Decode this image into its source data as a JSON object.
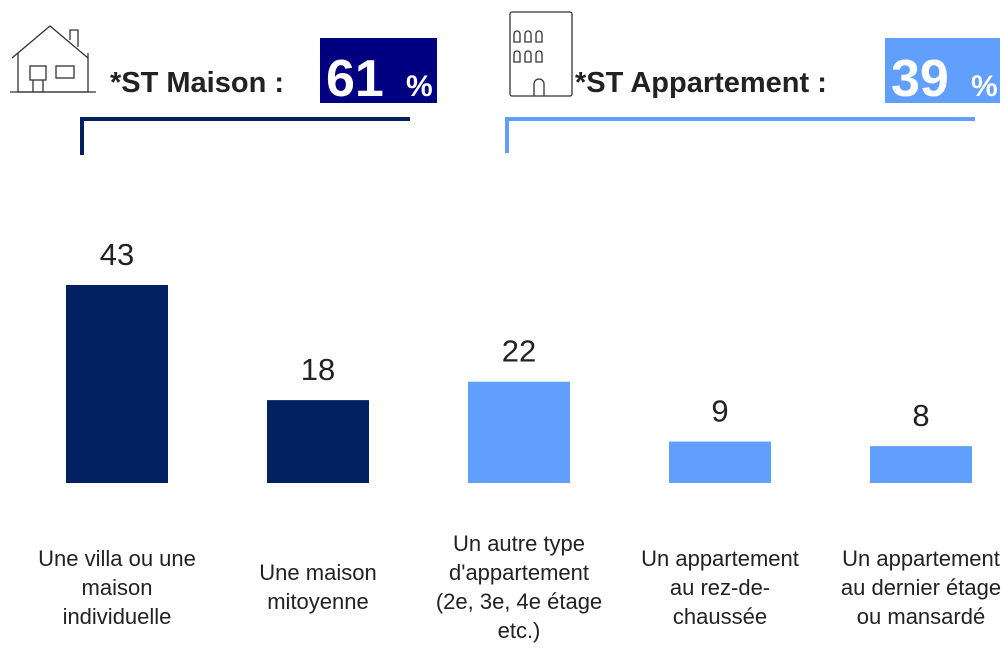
{
  "chart_data": {
    "type": "bar",
    "groups": [
      {
        "label": "*ST Maison :",
        "value": 61,
        "unit": "%",
        "color": "#000080"
      },
      {
        "label": "*ST Appartement :",
        "value": 39,
        "unit": "%",
        "color": "#619ffc"
      }
    ],
    "categories": [
      "Une villa ou une maison individuelle",
      "Une maison mitoyenne",
      "Un autre type d'appartement (2e, 3e, 4e étage etc.)",
      "Un appartement au rez-de-chaussée",
      "Un appartement au dernier étage ou mansardé"
    ],
    "values": [
      43,
      18,
      22,
      9,
      8
    ],
    "colors": [
      "#002060",
      "#002060",
      "#619ffc",
      "#619ffc",
      "#619ffc"
    ]
  }
}
